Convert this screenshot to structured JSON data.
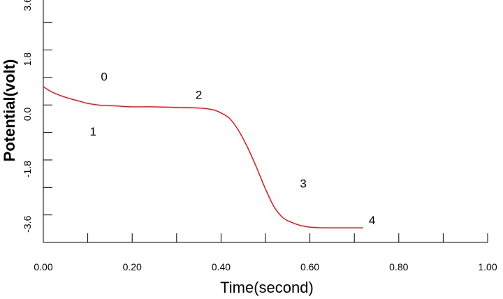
{
  "chart_data": {
    "type": "line",
    "title": "",
    "xlabel": "Time(second)",
    "ylabel": "Potential(volt)",
    "xlim": [
      0,
      1.0
    ],
    "ylim": [
      -4.2,
      3.6
    ],
    "x_ticks": [
      0,
      0.2,
      0.4,
      0.6,
      0.8,
      1.0
    ],
    "x_tick_labels": [
      "0.00",
      "0.20",
      "0.40",
      "0.60",
      "0.80",
      "1.00"
    ],
    "x_minor_step": 0.1,
    "y_ticks": [
      3.6,
      1.8,
      0.0,
      -1.8,
      -3.6
    ],
    "y_tick_labels": [
      "3.6",
      "1.8",
      "0.0",
      "-1.8",
      "-3.6"
    ],
    "y_minor_step": 0.9,
    "grid": false,
    "series": [
      {
        "name": "",
        "color": "#ff0000",
        "x": [
          0.0,
          0.02,
          0.05,
          0.08,
          0.1,
          0.13,
          0.16,
          0.2,
          0.25,
          0.3,
          0.35,
          0.38,
          0.4,
          0.42,
          0.44,
          0.46,
          0.48,
          0.5,
          0.52,
          0.54,
          0.56,
          0.58,
          0.6,
          0.63,
          0.67,
          0.7,
          0.72
        ],
        "values": [
          0.9,
          0.72,
          0.55,
          0.43,
          0.35,
          0.29,
          0.27,
          0.24,
          0.24,
          0.22,
          0.2,
          0.15,
          0.04,
          -0.15,
          -0.55,
          -1.1,
          -1.75,
          -2.45,
          -3.05,
          -3.4,
          -3.55,
          -3.65,
          -3.7,
          -3.72,
          -3.72,
          -3.72,
          -3.72
        ]
      }
    ],
    "annotations": [
      {
        "text": "0",
        "x": 0.137,
        "y": 1.1
      },
      {
        "text": "1",
        "x": 0.112,
        "y": -0.7
      },
      {
        "text": "2",
        "x": 0.35,
        "y": 0.5
      },
      {
        "text": "3",
        "x": 0.585,
        "y": -2.4
      },
      {
        "text": "4",
        "x": 0.74,
        "y": -3.6
      }
    ]
  }
}
